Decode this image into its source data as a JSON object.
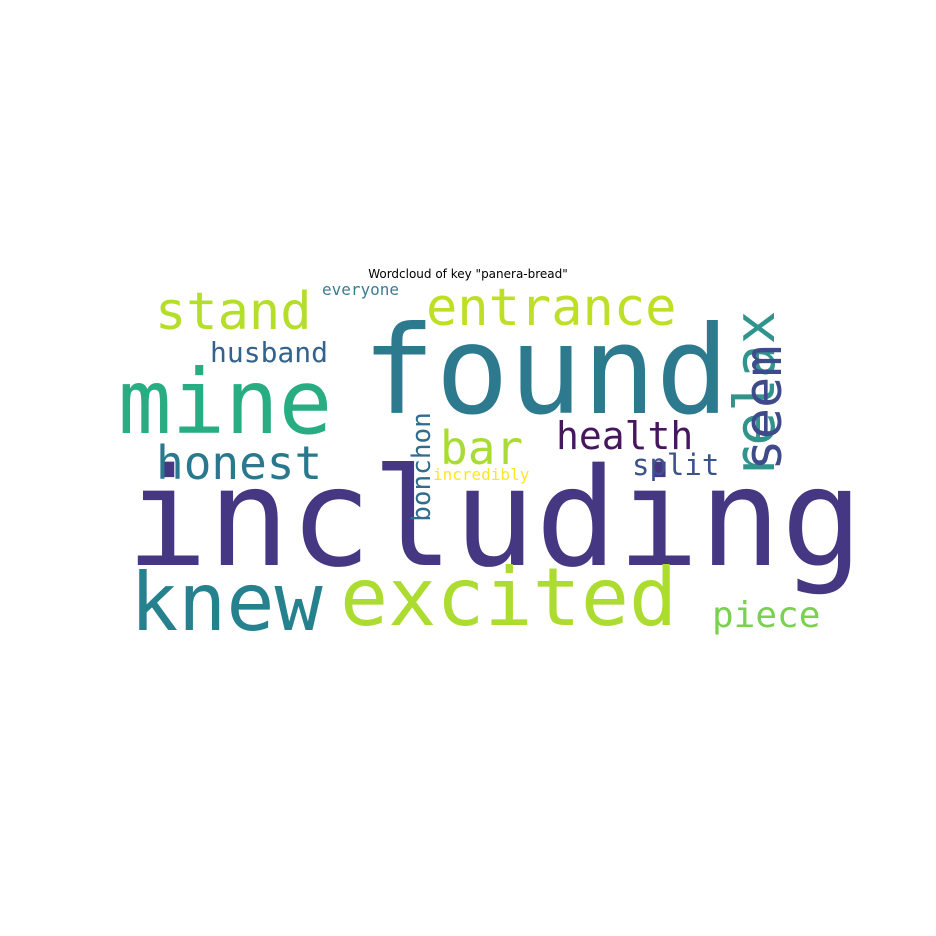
{
  "title": "Wordcloud of key \"panera-bread\"",
  "words": [
    {
      "text": "including",
      "color": "#453781"
    },
    {
      "text": "found",
      "color": "#2d7a8e"
    },
    {
      "text": "mine",
      "color": "#27ad81"
    },
    {
      "text": "excited",
      "color": "#addc30"
    },
    {
      "text": "knew",
      "color": "#26818e"
    },
    {
      "text": "entrance",
      "color": "#bddf26"
    },
    {
      "text": "stand",
      "color": "#b5de2b"
    },
    {
      "text": "relax",
      "color": "#31948c"
    },
    {
      "text": "seem",
      "color": "#3f4a8a"
    },
    {
      "text": "honest",
      "color": "#2a788e"
    },
    {
      "text": "bar",
      "color": "#a8db34"
    },
    {
      "text": "health",
      "color": "#46175f"
    },
    {
      "text": "husband",
      "color": "#33628d"
    },
    {
      "text": "piece",
      "color": "#7ad151"
    },
    {
      "text": "split",
      "color": "#3b528b"
    },
    {
      "text": "bonchon",
      "color": "#2f6c8e"
    },
    {
      "text": "everyone",
      "color": "#3b7c8c"
    },
    {
      "text": "incredibly",
      "color": "#fde725"
    }
  ]
}
